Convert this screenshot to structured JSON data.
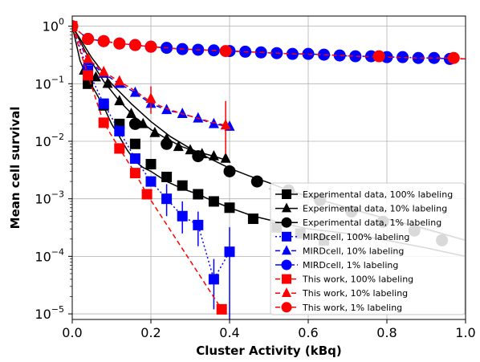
{
  "chart_data": {
    "type": "scatter",
    "xlabel": "Cluster Activity (kBq)",
    "ylabel": "Mean cell survival",
    "xlim": [
      0.0,
      1.0
    ],
    "ylim": [
      8e-06,
      1.5
    ],
    "yscale": "log",
    "grid": true,
    "legend_position": "lower-right",
    "x_ticks": [
      {
        "value": 0.0,
        "label": "0.0"
      },
      {
        "value": 0.2,
        "label": "0.2"
      },
      {
        "value": 0.4,
        "label": "0.4"
      },
      {
        "value": 0.6,
        "label": "0.6"
      },
      {
        "value": 0.8,
        "label": "0.8"
      },
      {
        "value": 1.0,
        "label": "1.0"
      }
    ],
    "y_ticks": [
      {
        "value": 1,
        "base": "10",
        "exp": "0"
      },
      {
        "value": 0.1,
        "base": "10",
        "exp": "−1"
      },
      {
        "value": 0.01,
        "base": "10",
        "exp": "−2"
      },
      {
        "value": 0.001,
        "base": "10",
        "exp": "−3"
      },
      {
        "value": 0.0001,
        "base": "10",
        "exp": "−4"
      },
      {
        "value": 1e-05,
        "base": "10",
        "exp": "−5"
      }
    ],
    "series": [
      {
        "name": "Experimental data, 100% labeling",
        "color": "#000000",
        "marker": "square",
        "linestyle": "solid",
        "x": [
          0.0,
          0.02,
          0.04,
          0.06,
          0.08,
          0.1,
          0.12,
          0.14,
          0.16,
          0.18,
          0.2,
          0.24,
          0.28,
          0.32,
          0.36,
          0.4,
          0.46,
          0.52,
          0.6,
          0.7,
          0.8,
          0.9,
          1.0
        ],
        "y": [
          1.0,
          0.25,
          0.12,
          0.07,
          0.04,
          0.02,
          0.012,
          0.007,
          0.0045,
          0.0035,
          0.003,
          0.002,
          0.0015,
          0.0012,
          0.0009,
          0.0007,
          0.0005,
          0.0004,
          0.0003,
          0.00025,
          0.00019,
          0.00014,
          0.0001
        ],
        "markers_x": [
          0.04,
          0.08,
          0.12,
          0.16,
          0.2,
          0.24,
          0.28,
          0.32,
          0.36,
          0.4,
          0.46,
          0.52,
          0.58,
          0.64
        ],
        "markers_y": [
          0.1,
          0.042,
          0.02,
          0.009,
          0.004,
          0.0024,
          0.0017,
          0.0012,
          0.0009,
          0.0007,
          0.00045,
          0.00032,
          0.00025,
          0.00019
        ]
      },
      {
        "name": "Experimental data, 10% labeling",
        "color": "#000000",
        "marker": "triangle",
        "linestyle": "solid",
        "x": [
          0.0,
          0.04,
          0.08,
          0.12,
          0.16,
          0.2,
          0.24,
          0.28,
          0.32,
          0.36,
          0.4
        ],
        "y": [
          1.0,
          0.3,
          0.11,
          0.05,
          0.026,
          0.016,
          0.011,
          0.008,
          0.0065,
          0.0055,
          0.0045
        ],
        "markers_x": [
          0.03,
          0.06,
          0.09,
          0.12,
          0.15,
          0.18,
          0.21,
          0.24,
          0.27,
          0.3,
          0.33,
          0.36,
          0.39
        ],
        "markers_y": [
          0.17,
          0.13,
          0.1,
          0.05,
          0.03,
          0.02,
          0.014,
          0.011,
          0.008,
          0.007,
          0.006,
          0.0055,
          0.005
        ]
      },
      {
        "name": "Experimental data, 1% labeling",
        "color": "#000000",
        "marker": "circle",
        "linestyle": "solid",
        "x": [
          0.0,
          0.05,
          0.1,
          0.15,
          0.2,
          0.25,
          0.3,
          0.35,
          0.4,
          0.45,
          0.5,
          0.55,
          0.6,
          0.7,
          0.8,
          0.9,
          1.0
        ],
        "y": [
          1.0,
          0.28,
          0.1,
          0.045,
          0.022,
          0.012,
          0.0075,
          0.005,
          0.0034,
          0.0025,
          0.0019,
          0.0014,
          0.0011,
          0.0007,
          0.00045,
          0.0003,
          0.00019
        ],
        "markers_x": [
          0.16,
          0.24,
          0.32,
          0.4,
          0.47,
          0.55,
          0.63,
          0.71,
          0.79,
          0.87,
          0.94
        ],
        "markers_y": [
          0.02,
          0.009,
          0.0055,
          0.003,
          0.002,
          0.0014,
          0.00095,
          0.0006,
          0.0004,
          0.00028,
          0.00019
        ]
      },
      {
        "name": "MIRDcell, 100% labeling",
        "color": "#0000ff",
        "marker": "square",
        "linestyle": "dotted",
        "x": [
          0.0,
          0.04,
          0.08,
          0.12,
          0.16,
          0.2,
          0.24,
          0.28,
          0.32,
          0.36,
          0.4
        ],
        "y": [
          1.0,
          0.17,
          0.045,
          0.015,
          0.005,
          0.002,
          0.001,
          0.0005,
          0.00035,
          4e-05,
          0.00012
        ],
        "markers_x": [
          0.04,
          0.08,
          0.12,
          0.16,
          0.2,
          0.24,
          0.28,
          0.32,
          0.36,
          0.4
        ],
        "markers_y": [
          0.17,
          0.045,
          0.015,
          0.005,
          0.002,
          0.001,
          0.0005,
          0.00035,
          4e-05,
          0.00012
        ],
        "err_low": [
          0.17,
          0.045,
          0.015,
          0.005,
          0.002,
          0.0005,
          0.00025,
          0.00015,
          1.2e-05,
          8e-06
        ],
        "err_high": [
          0.17,
          0.045,
          0.015,
          0.005,
          0.002,
          0.0018,
          0.0009,
          0.0006,
          9e-05,
          0.00032
        ]
      },
      {
        "name": "MIRDcell, 10% labeling",
        "color": "#0000ff",
        "marker": "triangle",
        "linestyle": "dashed",
        "x": [
          0.0,
          0.04,
          0.08,
          0.12,
          0.16,
          0.2,
          0.24,
          0.28,
          0.32,
          0.36,
          0.4
        ],
        "y": [
          1.0,
          0.25,
          0.15,
          0.1,
          0.07,
          0.045,
          0.035,
          0.03,
          0.025,
          0.02,
          0.018
        ],
        "markers_x": [
          0.04,
          0.08,
          0.12,
          0.16,
          0.2,
          0.24,
          0.28,
          0.32,
          0.36,
          0.4
        ],
        "markers_y": [
          0.25,
          0.15,
          0.1,
          0.07,
          0.045,
          0.035,
          0.03,
          0.025,
          0.02,
          0.018
        ]
      },
      {
        "name": "MIRDcell, 1% labeling",
        "color": "#0000ff",
        "marker": "circle",
        "linestyle": "dashdot",
        "x": [
          0.0,
          0.04,
          0.08,
          0.12,
          0.16,
          0.2,
          0.24,
          0.28,
          0.32,
          0.36,
          0.4,
          0.44,
          0.48,
          0.52,
          0.56,
          0.6,
          0.64,
          0.68,
          0.72,
          0.76,
          0.8,
          0.84,
          0.88,
          0.92,
          0.96,
          1.0
        ],
        "y": [
          1.0,
          0.6,
          0.55,
          0.5,
          0.47,
          0.44,
          0.42,
          0.4,
          0.39,
          0.38,
          0.37,
          0.36,
          0.35,
          0.34,
          0.33,
          0.33,
          0.32,
          0.31,
          0.3,
          0.3,
          0.29,
          0.29,
          0.28,
          0.28,
          0.27,
          0.27
        ],
        "markers_x": [
          0.04,
          0.08,
          0.12,
          0.16,
          0.2,
          0.24,
          0.28,
          0.32,
          0.36,
          0.4,
          0.44,
          0.48,
          0.52,
          0.56,
          0.6,
          0.64,
          0.68,
          0.72,
          0.76,
          0.8,
          0.84,
          0.88,
          0.92,
          0.96
        ],
        "markers_y": [
          0.6,
          0.55,
          0.5,
          0.47,
          0.44,
          0.42,
          0.4,
          0.39,
          0.38,
          0.37,
          0.36,
          0.35,
          0.34,
          0.33,
          0.33,
          0.32,
          0.31,
          0.3,
          0.3,
          0.29,
          0.29,
          0.28,
          0.28,
          0.27
        ]
      },
      {
        "name": "This work, 100% labeling",
        "color": "#ff0000",
        "marker": "square",
        "linestyle": "dashed",
        "x": [
          0.0,
          0.04,
          0.08,
          0.12,
          0.16,
          0.19,
          0.38
        ],
        "y": [
          1.0,
          0.14,
          0.021,
          0.0075,
          0.0028,
          0.0012,
          1.2e-05
        ],
        "markers_x": [
          0.0,
          0.04,
          0.08,
          0.12,
          0.16,
          0.19,
          0.38
        ],
        "markers_y": [
          1.0,
          0.14,
          0.021,
          0.0075,
          0.0028,
          0.0012,
          1.2e-05
        ]
      },
      {
        "name": "This work, 10% labeling",
        "color": "#ff0000",
        "marker": "triangle",
        "linestyle": "dashed",
        "x": [
          0.0,
          0.04,
          0.08,
          0.12,
          0.16,
          0.2,
          0.24,
          0.28,
          0.32,
          0.36,
          0.39
        ],
        "y": [
          1.0,
          0.27,
          0.16,
          0.11,
          0.075,
          0.048,
          0.037,
          0.03,
          0.025,
          0.021,
          0.019
        ],
        "markers_x": [
          0.04,
          0.08,
          0.12,
          0.2,
          0.39
        ],
        "markers_y": [
          0.27,
          0.16,
          0.11,
          0.055,
          0.019
        ],
        "err_low": [
          0.27,
          0.16,
          0.11,
          0.03,
          0.006
        ],
        "err_high": [
          0.27,
          0.16,
          0.11,
          0.09,
          0.05
        ]
      },
      {
        "name": "This work, 1% labeling",
        "color": "#ff0000",
        "marker": "circle",
        "linestyle": "dashed",
        "x": [
          0.0,
          0.04,
          0.08,
          0.12,
          0.16,
          0.2,
          0.24,
          0.28,
          0.32,
          0.36,
          0.4,
          0.48,
          0.56,
          0.64,
          0.72,
          0.8,
          0.88,
          0.96,
          1.0
        ],
        "y": [
          1.0,
          0.6,
          0.55,
          0.5,
          0.47,
          0.44,
          0.42,
          0.4,
          0.39,
          0.38,
          0.37,
          0.35,
          0.33,
          0.32,
          0.3,
          0.29,
          0.28,
          0.28,
          0.27
        ],
        "markers_x": [
          0.0,
          0.04,
          0.08,
          0.12,
          0.16,
          0.2,
          0.39,
          0.78,
          0.97
        ],
        "markers_y": [
          1.0,
          0.6,
          0.55,
          0.5,
          0.47,
          0.44,
          0.37,
          0.3,
          0.28
        ]
      }
    ],
    "grey_segment": {
      "color": "#bbbbbb",
      "x": [
        0.5,
        1.0
      ],
      "y": [
        0.0015,
        0.00019
      ],
      "markers_x": [
        0.55,
        0.63,
        0.71,
        0.79,
        0.87,
        0.94
      ],
      "markers_y": [
        0.0014,
        0.00095,
        0.0006,
        0.0004,
        0.00028,
        0.00019
      ]
    }
  }
}
